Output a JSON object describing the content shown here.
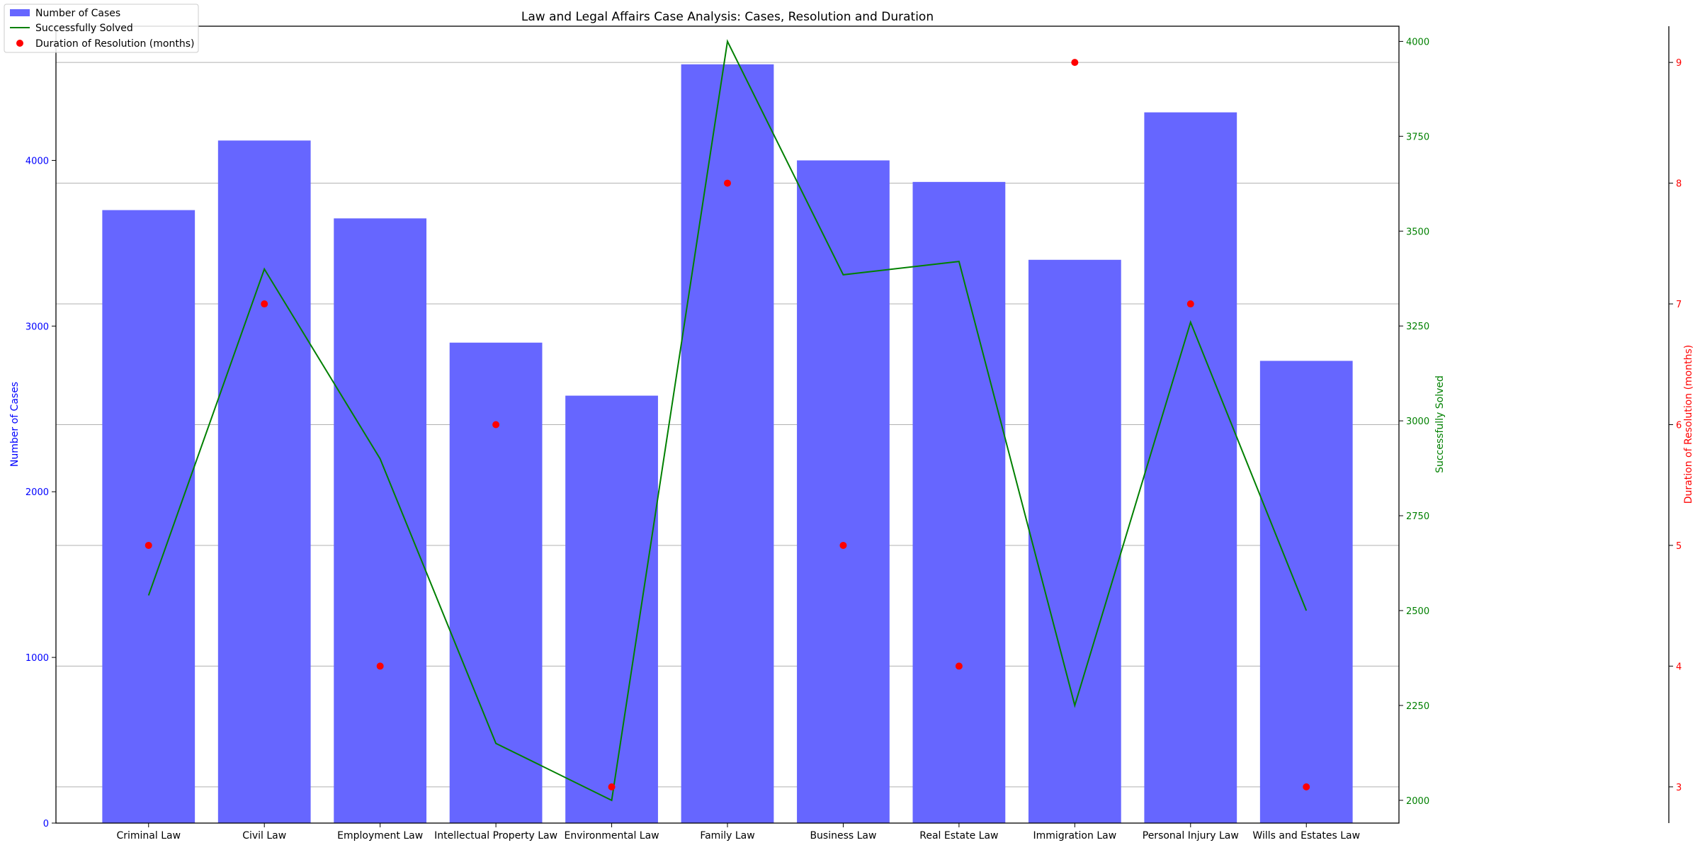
{
  "chart_data": {
    "type": "bar",
    "title": "Law and Legal Affairs Case Analysis: Cases, Resolution and Duration",
    "categories": [
      "Criminal Law",
      "Civil Law",
      "Employment Law",
      "Intellectual Property Law",
      "Environmental Law",
      "Family Law",
      "Business Law",
      "Real Estate Law",
      "Immigration Law",
      "Personal Injury Law",
      "Wills and Estates Law"
    ],
    "series": [
      {
        "name": "Number of Cases",
        "type": "bar",
        "axis": "left",
        "color": "#6666ff",
        "values": [
          3700,
          4120,
          3650,
          2900,
          2580,
          4580,
          4000,
          3870,
          3400,
          4290,
          2790
        ]
      },
      {
        "name": "Successfully Solved",
        "type": "line",
        "axis": "right",
        "color": "#008000",
        "values": [
          2540,
          3400,
          2900,
          2150,
          2000,
          4000,
          3385,
          3420,
          2250,
          3260,
          2500
        ]
      },
      {
        "name": "Duration of Resolution (months)",
        "type": "scatter",
        "axis": "right2",
        "color": "#ff0000",
        "values": [
          5,
          7,
          4,
          6,
          3,
          8,
          5,
          4,
          9,
          7,
          3
        ]
      }
    ],
    "axes": {
      "left": {
        "label": "Number of Cases",
        "color": "#0000ff",
        "ylim": [
          0,
          4810
        ],
        "ticks": [
          0,
          1000,
          2000,
          3000,
          4000
        ]
      },
      "right": {
        "label": "Successfully Solved",
        "color": "#008000",
        "ylim": [
          1940,
          4040
        ],
        "ticks": [
          2000,
          2250,
          2500,
          2750,
          3000,
          3250,
          3500,
          3750,
          4000
        ]
      },
      "right2": {
        "label": "Duration of Resolution (months)",
        "color": "#ff0000",
        "ylim": [
          2.7,
          9.3
        ],
        "ticks": [
          3,
          4,
          5,
          6,
          7,
          8,
          9
        ]
      }
    },
    "grid": "horizontal, at duration axis ticks",
    "legend_placement": "top-left"
  }
}
